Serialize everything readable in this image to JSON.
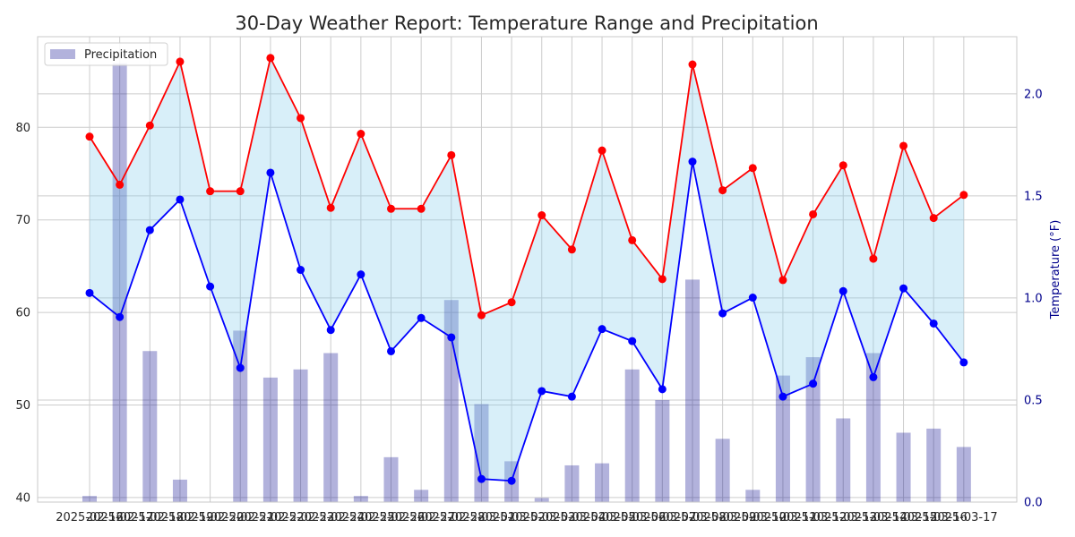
{
  "colors": {
    "background": "#ffffff",
    "grid": "#cccccc",
    "axis_frame": "#c8c8c8",
    "text": "#262626",
    "max_line": "#ff0000",
    "min_line": "#0000ff",
    "range_fill": "#87ceeb",
    "precip_bar": "#00008b",
    "right_axis_text": "#00008b"
  },
  "chart_data": {
    "type": "line+bar",
    "title": "30-Day Weather Report: Temperature Range and Precipitation",
    "xlabel": "",
    "y_left_label": "",
    "y_right_label": "Temperature (°F)",
    "y_left_lim": [
      39.5,
      89.8
    ],
    "y_left_ticks": [
      40,
      50,
      60,
      70,
      80
    ],
    "y_right_lim": [
      0.0,
      2.28
    ],
    "y_right_ticks": [
      "0.0",
      "0.5",
      "1.0",
      "1.5",
      "2.0"
    ],
    "grid": true,
    "legend": {
      "placement": "top-left",
      "entries": [
        "Precipitation"
      ]
    },
    "x": [
      "2025-02-16",
      "2025-02-17",
      "2025-02-18",
      "2025-02-19",
      "2025-02-20",
      "2025-02-21",
      "2025-02-22",
      "2025-02-23",
      "2025-02-24",
      "2025-02-25",
      "2025-02-26",
      "2025-02-27",
      "2025-02-28",
      "2025-03-01",
      "2025-03-02",
      "2025-03-03",
      "2025-03-04",
      "2025-03-05",
      "2025-03-06",
      "2025-03-07",
      "2025-03-08",
      "2025-03-09",
      "2025-03-10",
      "2025-03-11",
      "2025-03-12",
      "2025-03-13",
      "2025-03-14",
      "2025-03-15",
      "2025-03-16",
      "2025-03-17"
    ],
    "series": [
      {
        "kind": "line",
        "axis": "left",
        "values": [
          79.0,
          73.8,
          80.2,
          87.1,
          73.1,
          73.1,
          87.5,
          81.0,
          71.3,
          79.3,
          71.2,
          71.2,
          77.0,
          59.7,
          61.1,
          70.5,
          66.8,
          77.5,
          67.8,
          63.6,
          86.8,
          73.2,
          75.6,
          63.5,
          70.6,
          75.9,
          65.8,
          78.0,
          70.2,
          72.7
        ]
      },
      {
        "kind": "line",
        "axis": "left",
        "values": [
          62.1,
          59.5,
          68.9,
          72.2,
          62.8,
          54.0,
          75.1,
          64.6,
          58.1,
          64.1,
          55.8,
          59.4,
          57.3,
          42.0,
          41.8,
          51.5,
          50.9,
          58.2,
          56.9,
          51.7,
          76.3,
          59.9,
          61.6,
          50.9,
          52.3,
          62.3,
          53.0,
          62.6,
          58.8,
          54.6
        ]
      },
      {
        "kind": "bar",
        "name": "Precipitation",
        "axis": "right",
        "values": [
          0.03,
          2.15,
          0.74,
          0.11,
          0.0,
          0.84,
          0.61,
          0.65,
          0.73,
          0.03,
          0.22,
          0.06,
          0.99,
          0.48,
          0.2,
          0.02,
          0.18,
          0.19,
          0.65,
          0.5,
          1.09,
          0.31,
          0.06,
          0.62,
          0.71,
          0.41,
          0.73,
          0.34,
          0.36,
          0.27
        ]
      }
    ]
  }
}
